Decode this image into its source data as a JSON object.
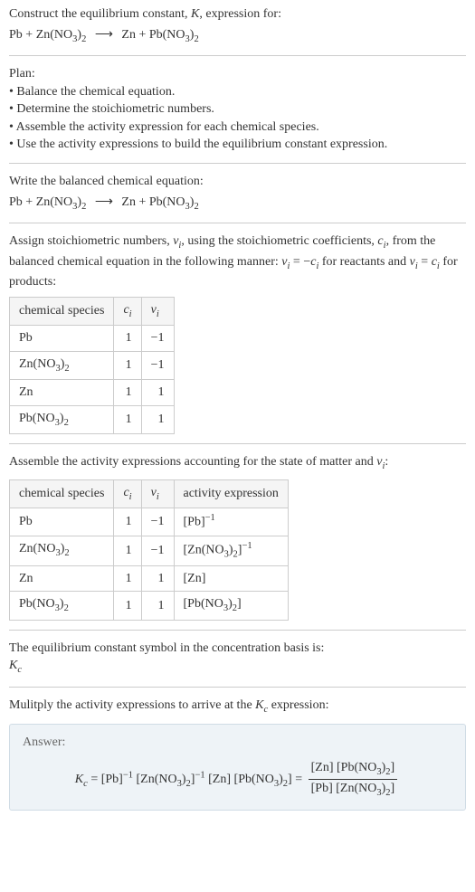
{
  "intro": {
    "line1_prefix": "Construct the equilibrium constant, ",
    "line1_K": "K",
    "line1_suffix": ", expression for:"
  },
  "main_equation": {
    "lhs_1": "Pb",
    "lhs_2_a": "Zn(NO",
    "lhs_2_b": "3",
    "lhs_2_c": ")",
    "lhs_2_d": "2",
    "arrow": "⟶",
    "rhs_1": "Zn",
    "rhs_2_a": "Pb(NO",
    "rhs_2_b": "3",
    "rhs_2_c": ")",
    "rhs_2_d": "2"
  },
  "plan": {
    "heading": "Plan:",
    "items": [
      "Balance the chemical equation.",
      "Determine the stoichiometric numbers.",
      "Assemble the activity expression for each chemical species.",
      "Use the activity expressions to build the equilibrium constant expression."
    ]
  },
  "balanced_heading": "Write the balanced chemical equation:",
  "stoich": {
    "p1": "Assign stoichiometric numbers, ",
    "nu_i": "ν",
    "sub_i": "i",
    "p2": ", using the stoichiometric coefficients, ",
    "c_i": "c",
    "p3": ", from the balanced chemical equation in the following manner: ",
    "eq1_lhs": "ν",
    "eq1_eq": " = −",
    "eq1_rhs": "c",
    "p4": " for reactants and ",
    "eq2_eq": " = ",
    "p5": " for products:"
  },
  "table1": {
    "headers": {
      "species": "chemical species",
      "ci": "c",
      "ci_sub": "i",
      "nui": "ν",
      "nui_sub": "i"
    },
    "rows": [
      {
        "species_a": "Pb",
        "species_b": "",
        "species_c": "",
        "species_d": "",
        "ci": "1",
        "nui": "−1"
      },
      {
        "species_a": "Zn(NO",
        "species_b": "3",
        "species_c": ")",
        "species_d": "2",
        "ci": "1",
        "nui": "−1"
      },
      {
        "species_a": "Zn",
        "species_b": "",
        "species_c": "",
        "species_d": "",
        "ci": "1",
        "nui": "1"
      },
      {
        "species_a": "Pb(NO",
        "species_b": "3",
        "species_c": ")",
        "species_d": "2",
        "ci": "1",
        "nui": "1"
      }
    ]
  },
  "assemble": {
    "p1": "Assemble the activity expressions accounting for the state of matter and ",
    "p2": ":"
  },
  "table2": {
    "headers": {
      "species": "chemical species",
      "ci": "c",
      "ci_sub": "i",
      "nui": "ν",
      "nui_sub": "i",
      "activity": "activity expression"
    },
    "rows": [
      {
        "species_a": "Pb",
        "species_b": "",
        "species_c": "",
        "species_d": "",
        "ci": "1",
        "nui": "−1",
        "act_a": "[Pb]",
        "act_exp": "−1"
      },
      {
        "species_a": "Zn(NO",
        "species_b": "3",
        "species_c": ")",
        "species_d": "2",
        "ci": "1",
        "nui": "−1",
        "act_a": "[Zn(NO",
        "act_b": "3",
        "act_c": ")",
        "act_d": "2",
        "act_e": "]",
        "act_exp": "−1"
      },
      {
        "species_a": "Zn",
        "species_b": "",
        "species_c": "",
        "species_d": "",
        "ci": "1",
        "nui": "1",
        "act_a": "[Zn]",
        "act_exp": ""
      },
      {
        "species_a": "Pb(NO",
        "species_b": "3",
        "species_c": ")",
        "species_d": "2",
        "ci": "1",
        "nui": "1",
        "act_a": "[Pb(NO",
        "act_b": "3",
        "act_c": ")",
        "act_d": "2",
        "act_e": "]",
        "act_exp": ""
      }
    ]
  },
  "symbol_line": "The equilibrium constant symbol in the concentration basis is:",
  "Kc_a": "K",
  "Kc_b": "c",
  "multiply": {
    "p1": "Mulitply the activity expressions to arrive at the ",
    "p2": " expression:"
  },
  "answer": {
    "label": "Answer:",
    "eq_prefix": " = ",
    "term1": "[Pb]",
    "exp_neg1": "−1",
    "term2_a": "[Zn(NO",
    "term2_b": "3",
    "term2_c": ")",
    "term2_d": "2",
    "term2_e": "]",
    "term3": "[Zn]",
    "term4_a": "[Pb(NO",
    "term4_b": "3",
    "term4_c": ")",
    "term4_d": "2",
    "term4_e": "]",
    "eq2": " = ",
    "frac_top_1": "[Zn]",
    "frac_top_2_a": "[Pb(NO",
    "frac_top_2_b": "3",
    "frac_top_2_c": ")",
    "frac_top_2_d": "2",
    "frac_top_2_e": "]",
    "frac_bot_1": "[Pb]",
    "frac_bot_2_a": "[Zn(NO",
    "frac_bot_2_b": "3",
    "frac_bot_2_c": ")",
    "frac_bot_2_d": "2",
    "frac_bot_2_e": "]"
  },
  "colors": {
    "text": "#333333",
    "border": "#cccccc",
    "header_bg": "#f5f5f5",
    "answer_bg": "#eef3f7",
    "answer_border": "#d0dce5"
  }
}
